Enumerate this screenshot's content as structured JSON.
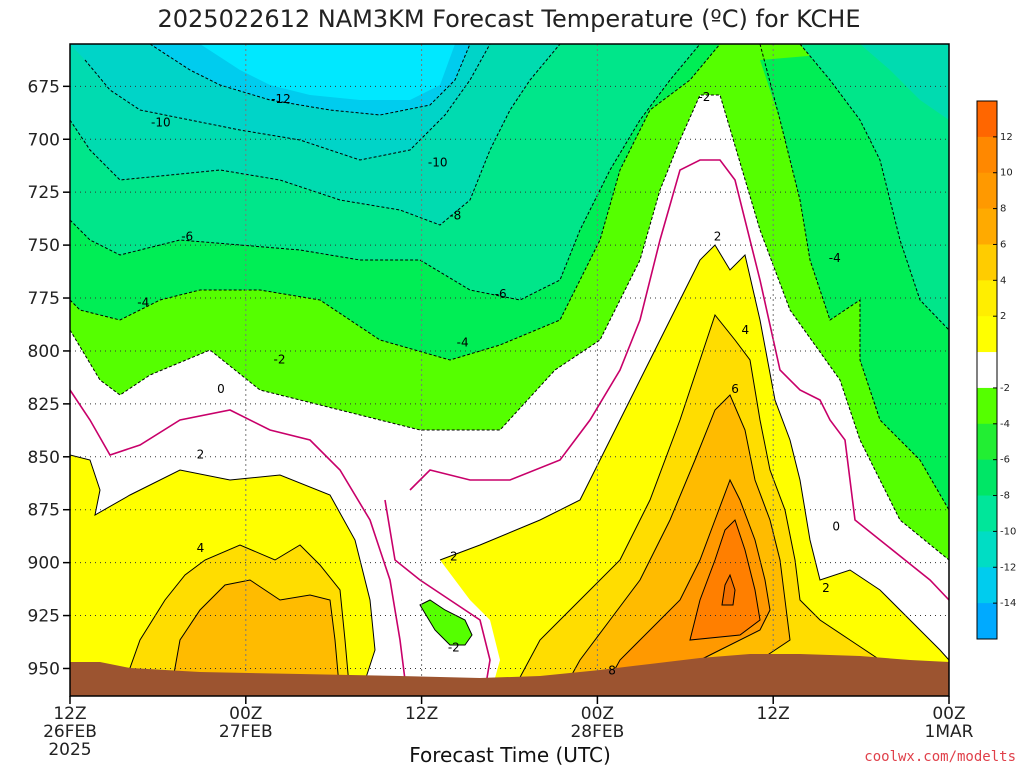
{
  "chart_data": {
    "type": "contour",
    "title": "2025022612 NAM3KM Forecast Temperature (ºC) for KCHE",
    "xlabel": "Forecast Time (UTC)",
    "x_ticks": [
      {
        "t": 0,
        "lines": [
          "12Z",
          "26FEB",
          "2025"
        ]
      },
      {
        "t": 12,
        "lines": [
          "00Z",
          "27FEB"
        ]
      },
      {
        "t": 24,
        "lines": [
          "12Z"
        ]
      },
      {
        "t": 36,
        "lines": [
          "00Z",
          "28FEB"
        ]
      },
      {
        "t": 48,
        "lines": [
          "12Z"
        ]
      },
      {
        "t": 60,
        "lines": [
          "00Z",
          "1MAR"
        ]
      }
    ],
    "y_ticks": [
      675,
      700,
      725,
      750,
      775,
      800,
      825,
      850,
      875,
      900,
      925,
      950
    ],
    "ylim": [
      655,
      963
    ],
    "xlim": [
      0,
      60
    ],
    "grid": true,
    "colorbar_ticks": [
      12,
      10,
      8,
      6,
      4,
      2,
      -2,
      -4,
      -6,
      -8,
      -10,
      -12,
      -14
    ],
    "contour_labels": [
      {
        "t": 14.4,
        "p": 681,
        "text": "-12"
      },
      {
        "t": 6.2,
        "p": 692,
        "text": "-10"
      },
      {
        "t": 25.1,
        "p": 711,
        "text": "-10"
      },
      {
        "t": 26.3,
        "p": 736,
        "text": "-8"
      },
      {
        "t": 8.0,
        "p": 746,
        "text": "-6"
      },
      {
        "t": 29.4,
        "p": 773,
        "text": "-6"
      },
      {
        "t": 5.0,
        "p": 777,
        "text": "-4"
      },
      {
        "t": 26.8,
        "p": 796,
        "text": "-4"
      },
      {
        "t": 14.3,
        "p": 804,
        "text": "-2"
      },
      {
        "t": 43.3,
        "p": 680,
        "text": "-2"
      },
      {
        "t": 52.2,
        "p": 756,
        "text": "-4"
      },
      {
        "t": 10.3,
        "p": 818,
        "text": "0"
      },
      {
        "t": 8.9,
        "p": 849,
        "text": "2"
      },
      {
        "t": 8.9,
        "p": 893,
        "text": "4"
      },
      {
        "t": 44.2,
        "p": 746,
        "text": "2"
      },
      {
        "t": 46.1,
        "p": 790,
        "text": "4"
      },
      {
        "t": 45.4,
        "p": 818,
        "text": "6"
      },
      {
        "t": 26.2,
        "p": 897,
        "text": "2"
      },
      {
        "t": 26.2,
        "p": 940,
        "text": "-2"
      },
      {
        "t": 37.0,
        "p": 951,
        "text": "8"
      },
      {
        "t": 51.6,
        "p": 912,
        "text": "2"
      },
      {
        "t": 52.3,
        "p": 883,
        "text": "0"
      }
    ]
  },
  "credit": "coolwx.com/modelts"
}
